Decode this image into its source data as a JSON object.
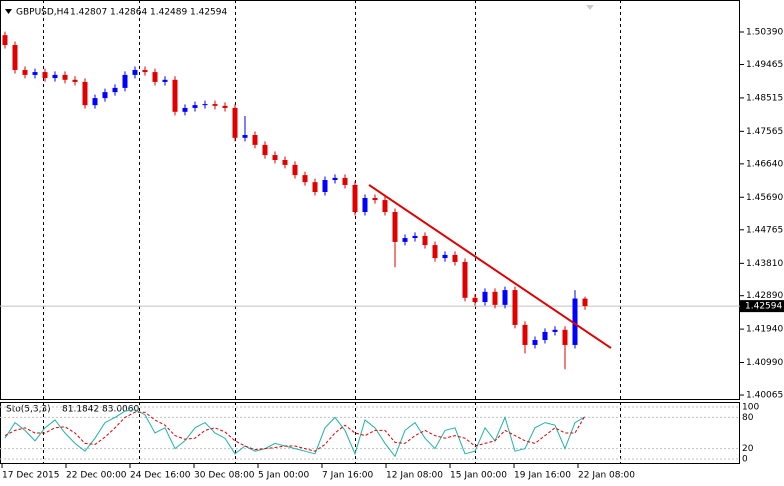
{
  "chart_data": {
    "type": "candlestick",
    "symbol": "GBPUSD,H4",
    "bull_color": "#0000ff",
    "bear_color": "#e00000",
    "open": [
      1.503,
      1.5002,
      1.4931,
      1.4917,
      1.4925,
      1.4908,
      1.4917,
      1.4903,
      1.4897,
      1.4831,
      1.4851,
      1.4868,
      1.488,
      1.4917,
      1.4931,
      1.4925,
      1.4897,
      1.4903,
      1.4812,
      1.4823,
      1.4831,
      1.4834,
      1.4829,
      1.4823,
      1.4738,
      1.4746,
      1.4718,
      1.4689,
      1.4675,
      1.4661,
      1.4632,
      1.4612,
      1.4584,
      1.4618,
      1.4624,
      1.4604,
      1.4527,
      1.4567,
      1.4561,
      1.4527,
      1.4442,
      1.4453,
      1.4459,
      1.4433,
      1.4396,
      1.4405,
      1.4385,
      1.4283,
      1.4271,
      1.43,
      1.4263,
      1.4305,
      1.4206,
      1.4149,
      1.4163,
      1.4186,
      1.4192,
      1.4149,
      1.42807
    ],
    "high": [
      1.504,
      1.5012,
      1.4941,
      1.4935,
      1.4935,
      1.4927,
      1.4927,
      1.4913,
      1.4907,
      1.4861,
      1.4878,
      1.489,
      1.4927,
      1.4941,
      1.4941,
      1.4935,
      1.4913,
      1.4913,
      1.4833,
      1.4841,
      1.4844,
      1.4844,
      1.4839,
      1.4833,
      1.48,
      1.4756,
      1.4728,
      1.4699,
      1.4685,
      1.4671,
      1.4642,
      1.4622,
      1.4628,
      1.4634,
      1.4634,
      1.4614,
      1.4577,
      1.4577,
      1.4571,
      1.4537,
      1.4463,
      1.4469,
      1.4469,
      1.4443,
      1.4415,
      1.4415,
      1.4395,
      1.4293,
      1.431,
      1.431,
      1.4315,
      1.4315,
      1.4216,
      1.4173,
      1.4196,
      1.4202,
      1.4202,
      1.4305,
      1.42864
    ],
    "low": [
      1.4992,
      1.4921,
      1.4907,
      1.4907,
      1.4898,
      1.4898,
      1.4893,
      1.4887,
      1.4821,
      1.4821,
      1.4841,
      1.4858,
      1.487,
      1.4907,
      1.4915,
      1.4887,
      1.4887,
      1.4802,
      1.4802,
      1.4813,
      1.4821,
      1.4819,
      1.4813,
      1.4728,
      1.4728,
      1.4708,
      1.4679,
      1.4665,
      1.4651,
      1.4622,
      1.4602,
      1.4574,
      1.4574,
      1.4608,
      1.4594,
      1.4517,
      1.4517,
      1.4551,
      1.4517,
      1.437,
      1.4432,
      1.4443,
      1.4423,
      1.4386,
      1.4386,
      1.4375,
      1.4273,
      1.4261,
      1.4261,
      1.4253,
      1.4253,
      1.4196,
      1.4125,
      1.4139,
      1.4153,
      1.4176,
      1.408,
      1.4139,
      1.42489
    ],
    "close": [
      1.5002,
      1.4931,
      1.4917,
      1.4925,
      1.4908,
      1.4917,
      1.4903,
      1.4897,
      1.4831,
      1.4851,
      1.4868,
      1.488,
      1.4917,
      1.4931,
      1.4925,
      1.4897,
      1.4903,
      1.4812,
      1.4823,
      1.4831,
      1.4834,
      1.4829,
      1.4823,
      1.4738,
      1.4746,
      1.4718,
      1.4689,
      1.4675,
      1.4661,
      1.4632,
      1.4612,
      1.4584,
      1.4618,
      1.4624,
      1.4604,
      1.4527,
      1.4567,
      1.4561,
      1.4527,
      1.4442,
      1.4453,
      1.4459,
      1.4433,
      1.4396,
      1.4405,
      1.4385,
      1.4283,
      1.4271,
      1.43,
      1.4263,
      1.4305,
      1.4206,
      1.4149,
      1.4163,
      1.4186,
      1.4192,
      1.4149,
      1.4281,
      1.42594
    ],
    "ylim": [
      1.39924,
      1.513
    ],
    "yticks": [
      {
        "value": 1.5039,
        "label": "1.50390"
      },
      1.49465,
      1.48515,
      1.47565,
      {
        "value": 1.4664,
        "label": "1.46640"
      },
      {
        "value": 1.4569,
        "label": "1.45690"
      },
      1.44765,
      {
        "value": 1.4381,
        "label": "1.43810"
      },
      {
        "value": 1.4289,
        "label": "1.42890"
      },
      {
        "value": 1.4194,
        "label": "1.41940"
      },
      {
        "value": 1.4099,
        "label": "1.40990"
      },
      1.40065
    ],
    "x_labels": [
      "17 Dec 2015",
      "22 Dec 00:00",
      "24 Dec 16:00",
      "30 Dec 08:00",
      "5 Jan 00:00",
      "7 Jan 16:00",
      "12 Jan 08:00",
      "15 Jan 00:00",
      "19 Jan 16:00",
      "22 Jan 08:00"
    ],
    "trendline": {
      "color": "#e00000",
      "from": [
        36.4,
        1.4604
      ],
      "to": [
        60.6,
        1.414
      ]
    },
    "indicator": {
      "name": "Sto(5,3,3)",
      "main_color": "#20b2aa",
      "signal_color": "#e00000",
      "main": [
        40,
        70,
        55,
        35,
        60,
        75,
        50,
        30,
        15,
        40,
        70,
        80,
        92,
        95,
        85,
        50,
        60,
        20,
        35,
        60,
        70,
        50,
        40,
        10,
        25,
        15,
        20,
        30,
        25,
        20,
        15,
        10,
        60,
        80,
        55,
        10,
        75,
        60,
        30,
        5,
        55,
        70,
        40,
        20,
        55,
        60,
        10,
        15,
        60,
        35,
        80,
        15,
        20,
        60,
        70,
        65,
        20,
        70,
        81.1842
      ],
      "signal": [
        45,
        55,
        60,
        50,
        50,
        60,
        62,
        50,
        30,
        28,
        42,
        60,
        80,
        90,
        90,
        75,
        65,
        45,
        38,
        40,
        55,
        60,
        52,
        35,
        25,
        18,
        20,
        22,
        25,
        25,
        20,
        15,
        28,
        50,
        65,
        50,
        45,
        55,
        55,
        32,
        30,
        45,
        55,
        45,
        40,
        45,
        40,
        25,
        30,
        35,
        55,
        45,
        35,
        30,
        45,
        60,
        50,
        50,
        83.006
      ],
      "signal_readout": "83.0060",
      "ylim": [
        0,
        100
      ],
      "yticks": [
        100,
        80,
        20,
        0
      ]
    }
  }
}
